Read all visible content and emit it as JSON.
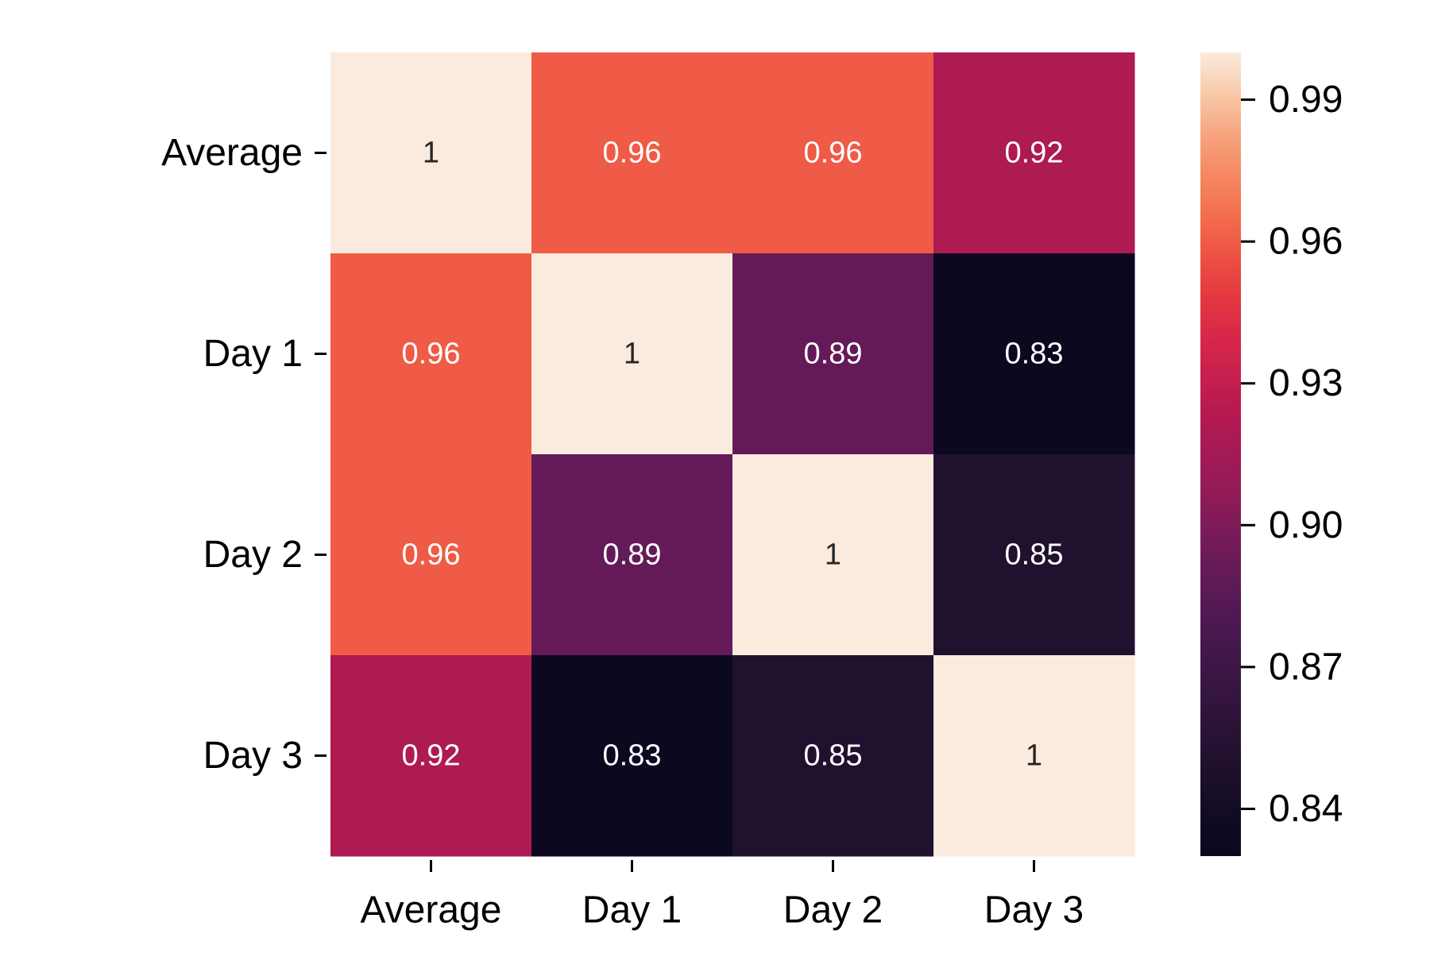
{
  "chart_data": {
    "type": "heatmap",
    "title": "",
    "xlabel": "",
    "ylabel": "",
    "x_categories": [
      "Average",
      "Day 1",
      "Day 2",
      "Day 3"
    ],
    "y_categories": [
      "Average",
      "Day 1",
      "Day 2",
      "Day 3"
    ],
    "matrix": [
      [
        1.0,
        0.96,
        0.96,
        0.92
      ],
      [
        0.96,
        1.0,
        0.89,
        0.83
      ],
      [
        0.96,
        0.89,
        1.0,
        0.85
      ],
      [
        0.92,
        0.83,
        0.85,
        1.0
      ]
    ],
    "cell_labels": [
      [
        "1",
        "0.96",
        "0.96",
        "0.92"
      ],
      [
        "0.96",
        "1",
        "0.89",
        "0.83"
      ],
      [
        "0.96",
        "0.89",
        "1",
        "0.85"
      ],
      [
        "0.92",
        "0.83",
        "0.85",
        "1"
      ]
    ],
    "colorbar": {
      "min": 0.83,
      "max": 1.0,
      "ticks": [
        0.99,
        0.96,
        0.93,
        0.9,
        0.87,
        0.84
      ],
      "tick_labels": [
        "0.99",
        "0.96",
        "0.93",
        "0.90",
        "0.87",
        "0.84"
      ],
      "colormap": "rocket",
      "placement": "right"
    },
    "grid": false,
    "legend": "colorbar-right"
  }
}
